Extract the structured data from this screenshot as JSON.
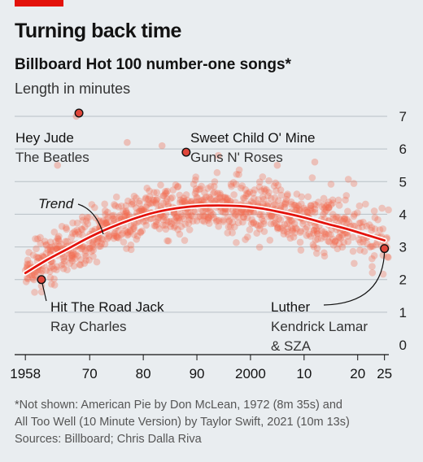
{
  "header": {
    "title": "Turning back time",
    "subtitle": "Billboard Hot 100 number-one songs*",
    "units": "Length in minutes"
  },
  "footnote": {
    "line1": "*Not shown: American Pie by Don McLean, 1972 (8m 35s) and",
    "line2": "All Too Well (10 Minute Version) by Taylor Swift, 2021 (10m 13s)",
    "sources": "Sources: Billboard; Chris Dalla Riva"
  },
  "colors": {
    "dots": "#f26a4f",
    "trend": "#e3120b",
    "highlight": "#e0463a",
    "grid": "#b7c0c6",
    "background": "#e9edf0"
  },
  "chart_data": {
    "type": "scatter",
    "title": "Billboard Hot 100 number-one songs*",
    "ylabel": "Length in minutes",
    "xlim": [
      1956,
      2028
    ],
    "ylim": [
      0,
      7
    ],
    "x_ticks": [
      1958,
      1970,
      1980,
      1990,
      2000,
      2010,
      2020,
      2025
    ],
    "x_tick_labels": [
      "1958",
      "70",
      "80",
      "90",
      "2000",
      "10",
      "20",
      "25"
    ],
    "y_ticks": [
      0,
      1,
      2,
      3,
      4,
      5,
      6,
      7
    ],
    "y_tick_labels": [
      "0",
      "1",
      "2",
      "3",
      "4",
      "5",
      "6",
      "7"
    ],
    "grid": true,
    "trend": {
      "label": "Trend",
      "x": [
        1958,
        1962,
        1966,
        1970,
        1974,
        1978,
        1982,
        1986,
        1990,
        1994,
        1998,
        2002,
        2006,
        2010,
        2014,
        2018,
        2022,
        2025
      ],
      "y": [
        2.2,
        2.6,
        2.95,
        3.3,
        3.6,
        3.85,
        4.05,
        4.18,
        4.25,
        4.27,
        4.25,
        4.18,
        4.05,
        3.9,
        3.72,
        3.55,
        3.35,
        3.2
      ]
    },
    "highlighted": [
      {
        "title": "Hey Jude",
        "artist": "The Beatles",
        "year": 1968,
        "minutes": 7.1
      },
      {
        "title": "Sweet Child O' Mine",
        "artist": "Guns N' Roses",
        "year": 1988,
        "minutes": 5.9
      },
      {
        "title": "Hit The Road Jack",
        "artist": "Ray Charles",
        "year": 1961,
        "minutes": 2.0
      },
      {
        "title": "Luther",
        "artist_lines": [
          "Kendrick Lamar",
          "& SZA"
        ],
        "year": 2025,
        "minutes": 2.95
      }
    ]
  }
}
